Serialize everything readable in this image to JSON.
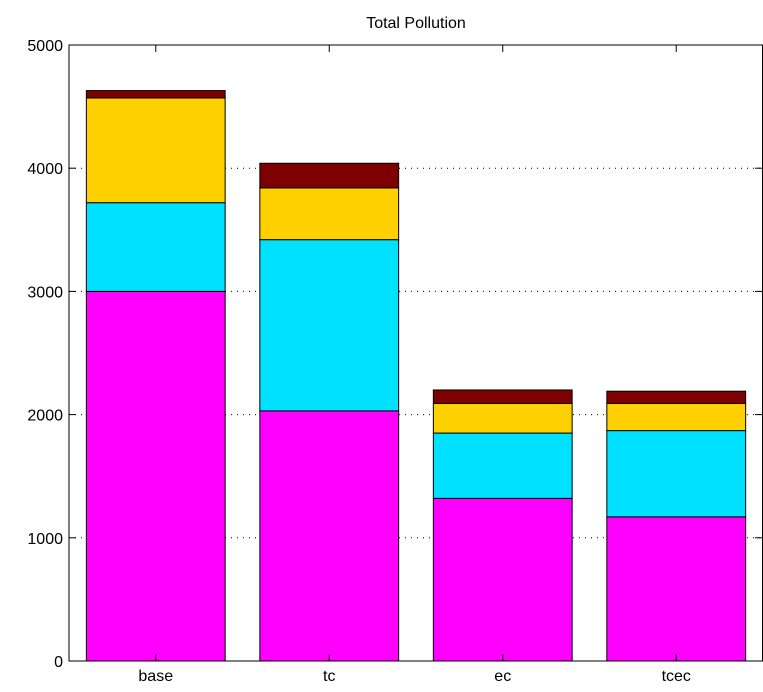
{
  "chart_data": {
    "type": "bar",
    "stacked": true,
    "title": "Total Pollution",
    "categories": [
      "base",
      "tc",
      "ec",
      "tcec"
    ],
    "series": [
      {
        "color": "#ff00ff",
        "values": [
          3000,
          2030,
          1320,
          1170
        ]
      },
      {
        "color": "#00e0ff",
        "values": [
          720,
          1390,
          530,
          700
        ]
      },
      {
        "color": "#ffd000",
        "values": [
          850,
          420,
          240,
          220
        ]
      },
      {
        "color": "#7f0000",
        "values": [
          60,
          200,
          110,
          100
        ]
      }
    ],
    "ylim": [
      0,
      5000
    ],
    "yticks": [
      0,
      1000,
      2000,
      3000,
      4000,
      5000
    ],
    "ytick_labels": [
      "0",
      "1000",
      "2000",
      "3000",
      "4000",
      "5000"
    ],
    "grid": "y-dotted"
  }
}
